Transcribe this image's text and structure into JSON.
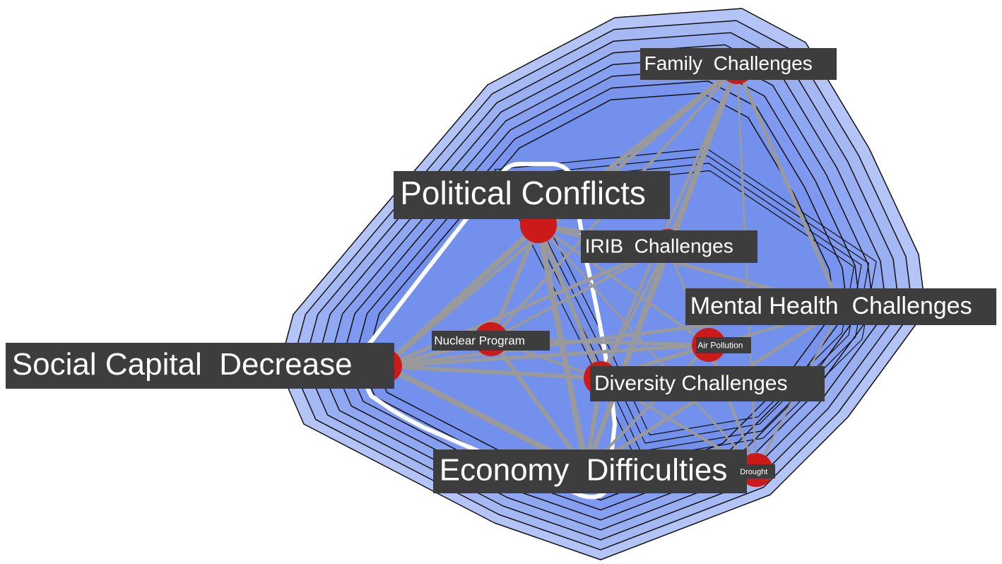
{
  "nodes": [
    {
      "label": "Family  Challenges"
    },
    {
      "label": "Political Conflicts"
    },
    {
      "label": "IRIB  Challenges"
    },
    {
      "label": "Mental Health  Challenges"
    },
    {
      "label": "Nuclear Program"
    },
    {
      "label": "Air Pollution"
    },
    {
      "label": "Social Capital  Decrease"
    },
    {
      "label": "Diversity Challenges"
    },
    {
      "label": "Economy  Difficulties"
    },
    {
      "label": "Drought"
    }
  ]
}
